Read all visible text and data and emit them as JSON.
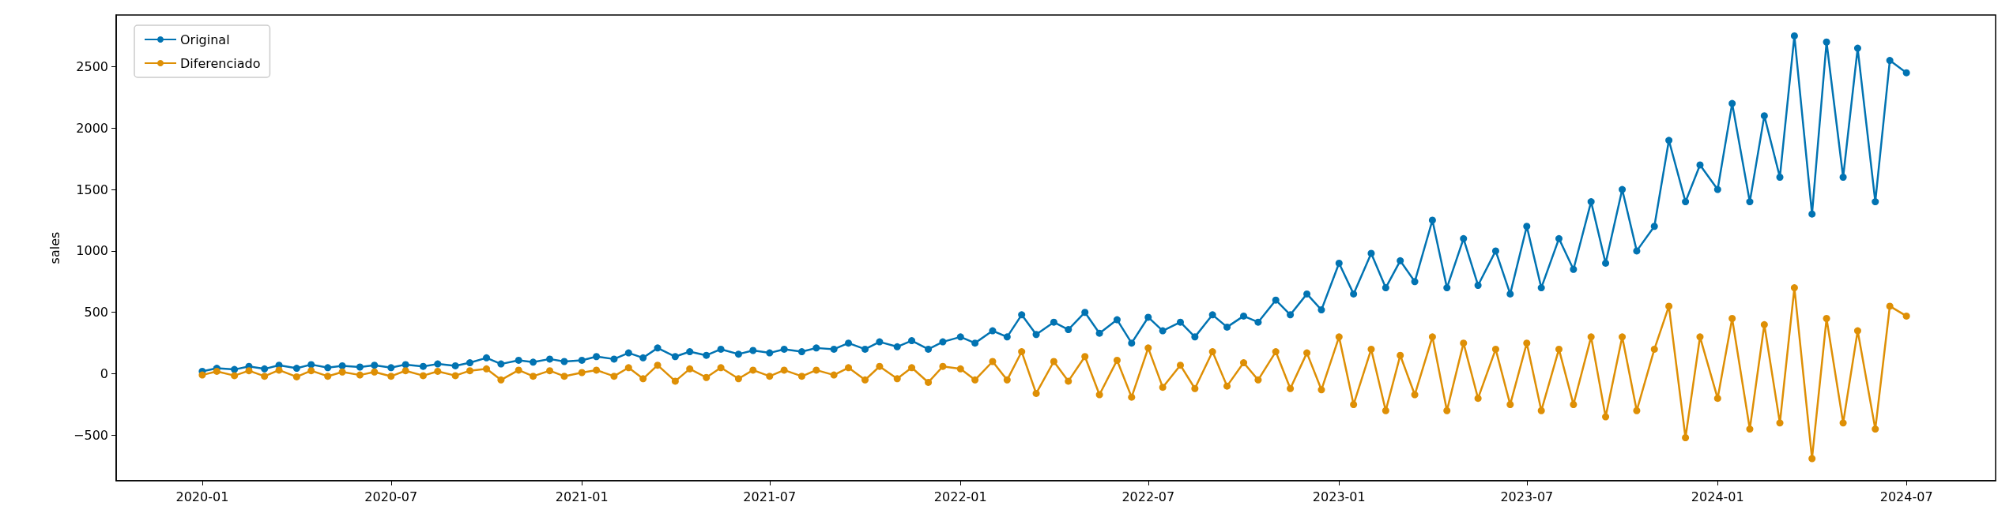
{
  "chart_data": {
    "type": "line",
    "ylabel": "sales",
    "x": [
      "2020-01-01",
      "2020-01-15",
      "2020-02-01",
      "2020-02-15",
      "2020-03-01",
      "2020-03-15",
      "2020-04-01",
      "2020-04-15",
      "2020-05-01",
      "2020-05-15",
      "2020-06-01",
      "2020-06-15",
      "2020-07-01",
      "2020-07-15",
      "2020-08-01",
      "2020-08-15",
      "2020-09-01",
      "2020-09-15",
      "2020-10-01",
      "2020-10-15",
      "2020-11-01",
      "2020-11-15",
      "2020-12-01",
      "2020-12-15",
      "2021-01-01",
      "2021-01-15",
      "2021-02-01",
      "2021-02-15",
      "2021-03-01",
      "2021-03-15",
      "2021-04-01",
      "2021-04-15",
      "2021-05-01",
      "2021-05-15",
      "2021-06-01",
      "2021-06-15",
      "2021-07-01",
      "2021-07-15",
      "2021-08-01",
      "2021-08-15",
      "2021-09-01",
      "2021-09-15",
      "2021-10-01",
      "2021-10-15",
      "2021-11-01",
      "2021-11-15",
      "2021-12-01",
      "2021-12-15",
      "2022-01-01",
      "2022-01-15",
      "2022-02-01",
      "2022-02-15",
      "2022-03-01",
      "2022-03-15",
      "2022-04-01",
      "2022-04-15",
      "2022-05-01",
      "2022-05-15",
      "2022-06-01",
      "2022-06-15",
      "2022-07-01",
      "2022-07-15",
      "2022-08-01",
      "2022-08-15",
      "2022-09-01",
      "2022-09-15",
      "2022-10-01",
      "2022-10-15",
      "2022-11-01",
      "2022-11-15",
      "2022-12-01",
      "2022-12-15",
      "2023-01-01",
      "2023-01-15",
      "2023-02-01",
      "2023-02-15",
      "2023-03-01",
      "2023-03-15",
      "2023-04-01",
      "2023-04-15",
      "2023-05-01",
      "2023-05-15",
      "2023-06-01",
      "2023-06-15",
      "2023-07-01",
      "2023-07-15",
      "2023-08-01",
      "2023-08-15",
      "2023-09-01",
      "2023-09-15",
      "2023-10-01",
      "2023-10-15",
      "2023-11-01",
      "2023-11-15",
      "2023-12-01",
      "2023-12-15",
      "2024-01-01",
      "2024-01-15",
      "2024-02-01",
      "2024-02-15",
      "2024-03-01",
      "2024-03-15",
      "2024-04-01",
      "2024-04-15",
      "2024-05-01",
      "2024-05-15",
      "2024-06-01",
      "2024-06-15",
      "2024-07-01"
    ],
    "series": [
      {
        "name": "Original",
        "color": "#0173b2",
        "values": [
          20,
          45,
          35,
          60,
          40,
          70,
          45,
          75,
          50,
          65,
          55,
          70,
          50,
          75,
          60,
          80,
          65,
          90,
          130,
          80,
          110,
          95,
          120,
          100,
          110,
          140,
          120,
          170,
          130,
          210,
          140,
          180,
          150,
          200,
          160,
          190,
          170,
          200,
          180,
          210,
          200,
          250,
          200,
          260,
          220,
          270,
          200,
          260,
          300,
          250,
          350,
          300,
          480,
          320,
          420,
          360,
          500,
          330,
          440,
          250,
          460,
          350,
          420,
          300,
          480,
          380,
          470,
          420,
          600,
          480,
          650,
          520,
          900,
          650,
          980,
          700,
          920,
          750,
          1250,
          700,
          1100,
          720,
          1000,
          650,
          1200,
          700,
          1100,
          850,
          1400,
          900,
          1500,
          1000,
          1200,
          1900,
          1400,
          1700,
          1500,
          2200,
          1400,
          2100,
          1600,
          2750,
          1300,
          2700,
          1600,
          2650,
          1400,
          2550,
          2450
        ]
      },
      {
        "name": "Diferenciado",
        "color": "#de8f05",
        "values": [
          -10,
          20,
          -15,
          25,
          -20,
          30,
          -25,
          25,
          -20,
          15,
          -10,
          15,
          -20,
          25,
          -15,
          20,
          -15,
          25,
          40,
          -50,
          30,
          -20,
          25,
          -20,
          10,
          30,
          -20,
          50,
          -40,
          70,
          -60,
          40,
          -30,
          50,
          -40,
          30,
          -20,
          30,
          -20,
          30,
          -10,
          50,
          -50,
          60,
          -40,
          50,
          -70,
          60,
          40,
          -50,
          100,
          -50,
          180,
          -160,
          100,
          -60,
          140,
          -170,
          110,
          -190,
          210,
          -110,
          70,
          -120,
          180,
          -100,
          90,
          -50,
          180,
          -120,
          170,
          -130,
          300,
          -250,
          200,
          -300,
          150,
          -170,
          300,
          -300,
          250,
          -200,
          200,
          -250,
          250,
          -300,
          200,
          -250,
          300,
          -350,
          300,
          -300,
          200,
          550,
          -520,
          300,
          -200,
          450,
          -450,
          400,
          -400,
          700,
          -690,
          450,
          -400,
          350,
          -450,
          550,
          470
        ]
      }
    ],
    "xlim": [
      "2019-10-10",
      "2024-09-25"
    ],
    "xticks": [
      "2020-01",
      "2020-07",
      "2021-01",
      "2021-07",
      "2022-01",
      "2022-07",
      "2023-01",
      "2023-07",
      "2024-01",
      "2024-07"
    ],
    "ylim": [
      -870,
      2920
    ],
    "yticks": [
      -500,
      0,
      500,
      1000,
      1500,
      2000,
      2500
    ],
    "legend": "top left",
    "marker": "circle",
    "line_style": "solid",
    "grid": false
  }
}
